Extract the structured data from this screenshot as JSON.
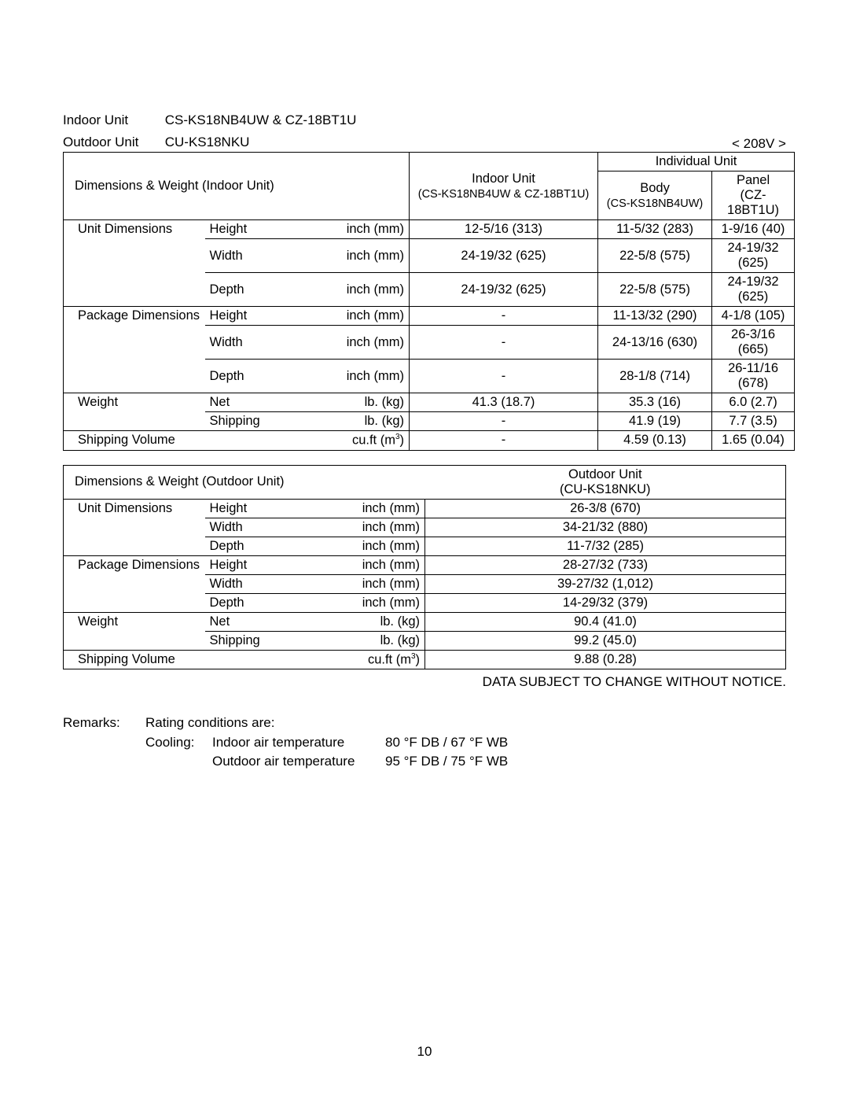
{
  "header": {
    "indoor_label": "Indoor Unit",
    "indoor_models": "CS-KS18NB4UW & CZ-18BT1U",
    "outdoor_label": "Outdoor Unit",
    "outdoor_model": "CU-KS18NKU",
    "voltage": "< 208V >"
  },
  "table1": {
    "title": "Dimensions & Weight (Indoor Unit)",
    "col_indoor_line1": "Indoor Unit",
    "col_indoor_line2": "(CS-KS18NB4UW & CZ-18BT1U)",
    "col_individual": "Individual Unit",
    "col_body_line1": "Body",
    "col_body_line2": "(CS-KS18NB4UW)",
    "col_panel_line1": "Panel",
    "col_panel_line2": "(CZ-18BT1U)",
    "rows": [
      {
        "g": "Unit Dimensions",
        "s": "Height",
        "u": "inch (mm)",
        "a": "12-5/16 (313)",
        "b": "11-5/32 (283)",
        "c": "1-9/16 (40)"
      },
      {
        "g": "",
        "s": "Width",
        "u": "inch (mm)",
        "a": "24-19/32 (625)",
        "b": "22-5/8 (575)",
        "c": "24-19/32 (625)"
      },
      {
        "g": "",
        "s": "Depth",
        "u": "inch (mm)",
        "a": "24-19/32 (625)",
        "b": "22-5/8 (575)",
        "c": "24-19/32 (625)"
      },
      {
        "g": "Package Dimensions",
        "s": "Height",
        "u": "inch (mm)",
        "a": "-",
        "b": "11-13/32 (290)",
        "c": "4-1/8 (105)"
      },
      {
        "g": "",
        "s": "Width",
        "u": "inch (mm)",
        "a": "-",
        "b": "24-13/16 (630)",
        "c": "26-3/16 (665)"
      },
      {
        "g": "",
        "s": "Depth",
        "u": "inch (mm)",
        "a": "-",
        "b": "28-1/8 (714)",
        "c": "26-11/16 (678)"
      },
      {
        "g": "Weight",
        "s": "Net",
        "u": "lb. (kg)",
        "a": "41.3 (18.7)",
        "b": "35.3 (16)",
        "c": "6.0 (2.7)"
      },
      {
        "g": "",
        "s": "Shipping",
        "u": "lb. (kg)",
        "a": "-",
        "b": "41.9 (19)",
        "c": "7.7 (3.5)"
      },
      {
        "g": "Shipping Volume",
        "s": "",
        "u": "cu.ft (m³)",
        "a": "-",
        "b": "4.59 (0.13)",
        "c": "1.65 (0.04)"
      }
    ]
  },
  "table2": {
    "title": "Dimensions & Weight (Outdoor Unit)",
    "col_outdoor_line1": "Outdoor Unit",
    "col_outdoor_line2": "(CU-KS18NKU)",
    "rows": [
      {
        "g": "Unit Dimensions",
        "s": "Height",
        "u": "inch (mm)",
        "a": "26-3/8 (670)"
      },
      {
        "g": "",
        "s": "Width",
        "u": "inch (mm)",
        "a": "34-21/32 (880)"
      },
      {
        "g": "",
        "s": "Depth",
        "u": "inch (mm)",
        "a": "11-7/32 (285)"
      },
      {
        "g": "Package Dimensions",
        "s": "Height",
        "u": "inch (mm)",
        "a": "28-27/32 (733)"
      },
      {
        "g": "",
        "s": "Width",
        "u": "inch (mm)",
        "a": "39-27/32 (1,012)"
      },
      {
        "g": "",
        "s": "Depth",
        "u": "inch (mm)",
        "a": "14-29/32 (379)"
      },
      {
        "g": "Weight",
        "s": "Net",
        "u": "lb. (kg)",
        "a": "90.4 (41.0)"
      },
      {
        "g": "",
        "s": "Shipping",
        "u": "lb. (kg)",
        "a": "99.2 (45.0)"
      },
      {
        "g": "Shipping Volume",
        "s": "",
        "u": "cu.ft (m³)",
        "a": "9.88 (0.28)"
      }
    ]
  },
  "notice": "DATA SUBJECT TO CHANGE WITHOUT NOTICE.",
  "remarks": {
    "label": "Remarks:",
    "line1a": "Rating conditions are:",
    "line2a": "Cooling:",
    "line2b": "Indoor air temperature",
    "line2c": "80 °F DB / 67 °F WB",
    "line3b": "Outdoor air temperature",
    "line3c": "95 °F DB / 75 °F WB"
  },
  "page_number": "10"
}
